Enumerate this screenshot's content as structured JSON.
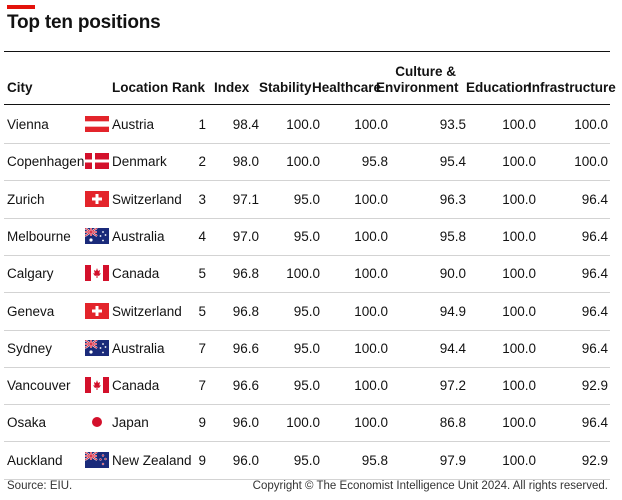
{
  "title": "Top ten positions",
  "headers": {
    "city": "City",
    "location": "Location",
    "rank": "Rank",
    "index": "Index",
    "stability": "Stability",
    "healthcare": "Healthcare",
    "culture_line1": "Culture &",
    "culture_line2": "Environment",
    "education": "Education",
    "infrastructure": "Infrastructure"
  },
  "rows": [
    {
      "city": "Vienna",
      "flag": "austria-flag",
      "location": "Austria",
      "rank": "1",
      "index": "98.4",
      "stability": "100.0",
      "healthcare": "100.0",
      "culture": "93.5",
      "education": "100.0",
      "infrastructure": "100.0"
    },
    {
      "city": "Copenhagen",
      "flag": "denmark-flag",
      "location": "Denmark",
      "rank": "2",
      "index": "98.0",
      "stability": "100.0",
      "healthcare": "95.8",
      "culture": "95.4",
      "education": "100.0",
      "infrastructure": "100.0"
    },
    {
      "city": "Zurich",
      "flag": "switzerland-flag",
      "location": "Switzerland",
      "rank": "3",
      "index": "97.1",
      "stability": "95.0",
      "healthcare": "100.0",
      "culture": "96.3",
      "education": "100.0",
      "infrastructure": "96.4"
    },
    {
      "city": "Melbourne",
      "flag": "australia-flag",
      "location": "Australia",
      "rank": "4",
      "index": "97.0",
      "stability": "95.0",
      "healthcare": "100.0",
      "culture": "95.8",
      "education": "100.0",
      "infrastructure": "96.4"
    },
    {
      "city": "Calgary",
      "flag": "canada-flag",
      "location": "Canada",
      "rank": "5",
      "index": "96.8",
      "stability": "100.0",
      "healthcare": "100.0",
      "culture": "90.0",
      "education": "100.0",
      "infrastructure": "96.4"
    },
    {
      "city": "Geneva",
      "flag": "switzerland-flag",
      "location": "Switzerland",
      "rank": "5",
      "index": "96.8",
      "stability": "95.0",
      "healthcare": "100.0",
      "culture": "94.9",
      "education": "100.0",
      "infrastructure": "96.4"
    },
    {
      "city": "Sydney",
      "flag": "australia-flag",
      "location": "Australia",
      "rank": "7",
      "index": "96.6",
      "stability": "95.0",
      "healthcare": "100.0",
      "culture": "94.4",
      "education": "100.0",
      "infrastructure": "96.4"
    },
    {
      "city": "Vancouver",
      "flag": "canada-flag",
      "location": "Canada",
      "rank": "7",
      "index": "96.6",
      "stability": "95.0",
      "healthcare": "100.0",
      "culture": "97.2",
      "education": "100.0",
      "infrastructure": "92.9"
    },
    {
      "city": "Osaka",
      "flag": "japan-flag",
      "location": "Japan",
      "rank": "9",
      "index": "96.0",
      "stability": "100.0",
      "healthcare": "100.0",
      "culture": "86.8",
      "education": "100.0",
      "infrastructure": "96.4"
    },
    {
      "city": "Auckland",
      "flag": "new-zealand-flag",
      "location": "New Zealand",
      "rank": "9",
      "index": "96.0",
      "stability": "95.0",
      "healthcare": "95.8",
      "culture": "97.9",
      "education": "100.0",
      "infrastructure": "92.9"
    }
  ],
  "source": "Source: EIU.",
  "copyright": "Copyright © The Economist Intelligence Unit 2024. All rights reserved.",
  "colors": {
    "accent": "#e3120b",
    "text": "#121212",
    "row_rule": "#d3d3d3"
  }
}
